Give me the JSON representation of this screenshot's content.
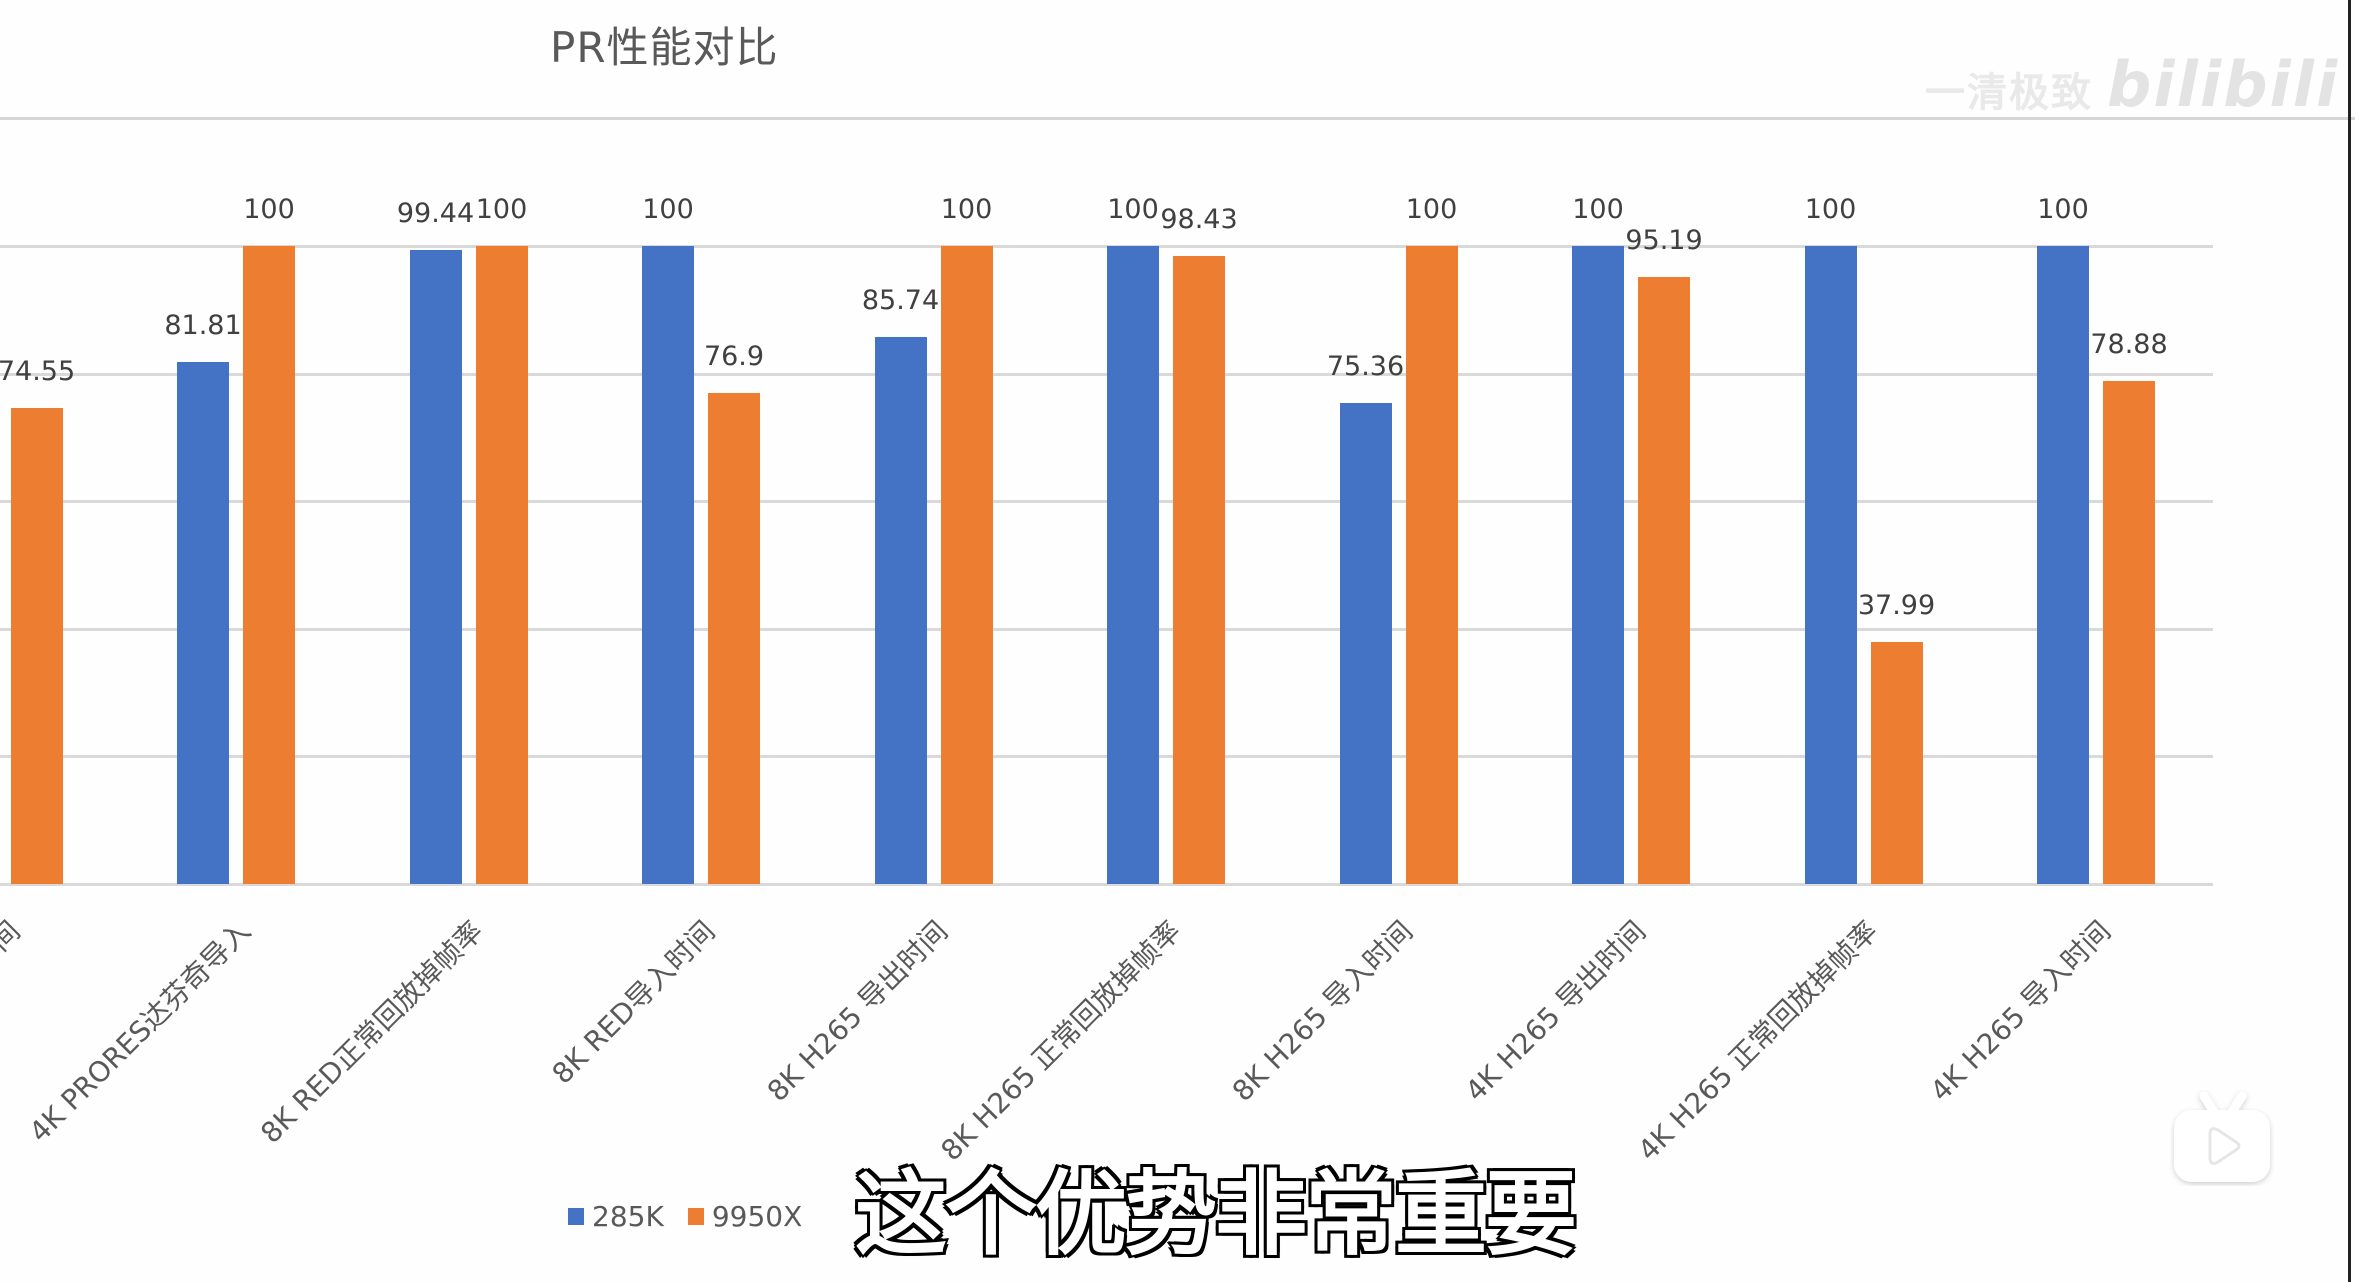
{
  "title": "PR性能对比",
  "watermark": {
    "channel": "一清极致",
    "logo": "bilibili"
  },
  "subtitle": "这个优势非常重要",
  "legend": [
    {
      "label": "285K",
      "color": "#4472c4"
    },
    {
      "label": "9950X",
      "color": "#ed7d31"
    }
  ],
  "colors": {
    "series_285k": "#4472c4",
    "series_9950x": "#ed7d31",
    "grid": "#d9d9d9"
  },
  "chart_data": {
    "type": "bar",
    "title": "PR性能对比",
    "xlabel": "",
    "ylabel": "",
    "ylim": [
      0,
      100
    ],
    "grid": true,
    "gridline_step": 20,
    "legend_position": "bottom-left",
    "categories": [
      "",
      "4K PRORES达芬奇导入",
      "8K RED正常回放掉帧率",
      "8K RED导入时间",
      "8K H265 导出时间",
      "8K H265 正常回放掉帧率",
      "8K H265 导入时间",
      "4K H265 导出时间",
      "4K H265 正常回放掉帧率",
      "4K H265 导入时间"
    ],
    "series": [
      {
        "name": "285K",
        "values": [
          null,
          81.81,
          99.44,
          100,
          85.74,
          100,
          75.36,
          100,
          100,
          100
        ]
      },
      {
        "name": "9950X",
        "values": [
          74.55,
          100,
          100,
          76.9,
          100,
          98.43,
          100,
          95.19,
          37.99,
          78.88
        ]
      }
    ],
    "notes": "First category label and 285K bar are clipped off the left edge of the frame."
  }
}
